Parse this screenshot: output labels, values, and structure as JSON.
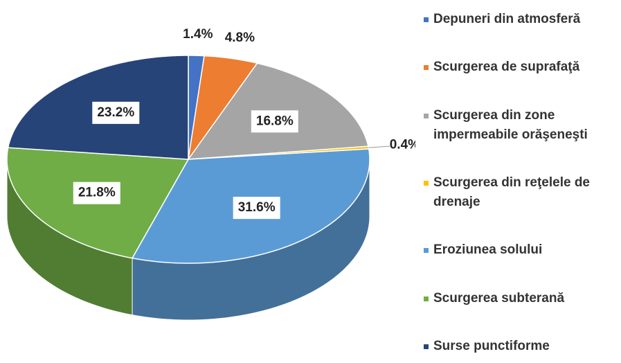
{
  "chart_data": {
    "type": "pie3d",
    "categories": [
      "Depuneri din atmosferă",
      "Scurgerea de suprafaţă",
      "Scurgerea din zone impermeabile orăşeneşti",
      "Scurgerea din reţelele de drenaje",
      "Eroziunea solului",
      "Scurgerea subterană",
      "Surse punctiforme"
    ],
    "values": [
      1.4,
      4.8,
      16.8,
      0.4,
      31.6,
      21.8,
      23.2
    ],
    "value_labels": [
      "1.4%",
      "4.8%",
      "16.8%",
      "0.4%",
      "31.6%",
      "21.8%",
      "23.2%"
    ],
    "colors": [
      "#4472c4",
      "#ed7d31",
      "#a5a5a5",
      "#ffc000",
      "#5b9bd5",
      "#70ad47",
      "#264478"
    ],
    "legend": "right"
  }
}
